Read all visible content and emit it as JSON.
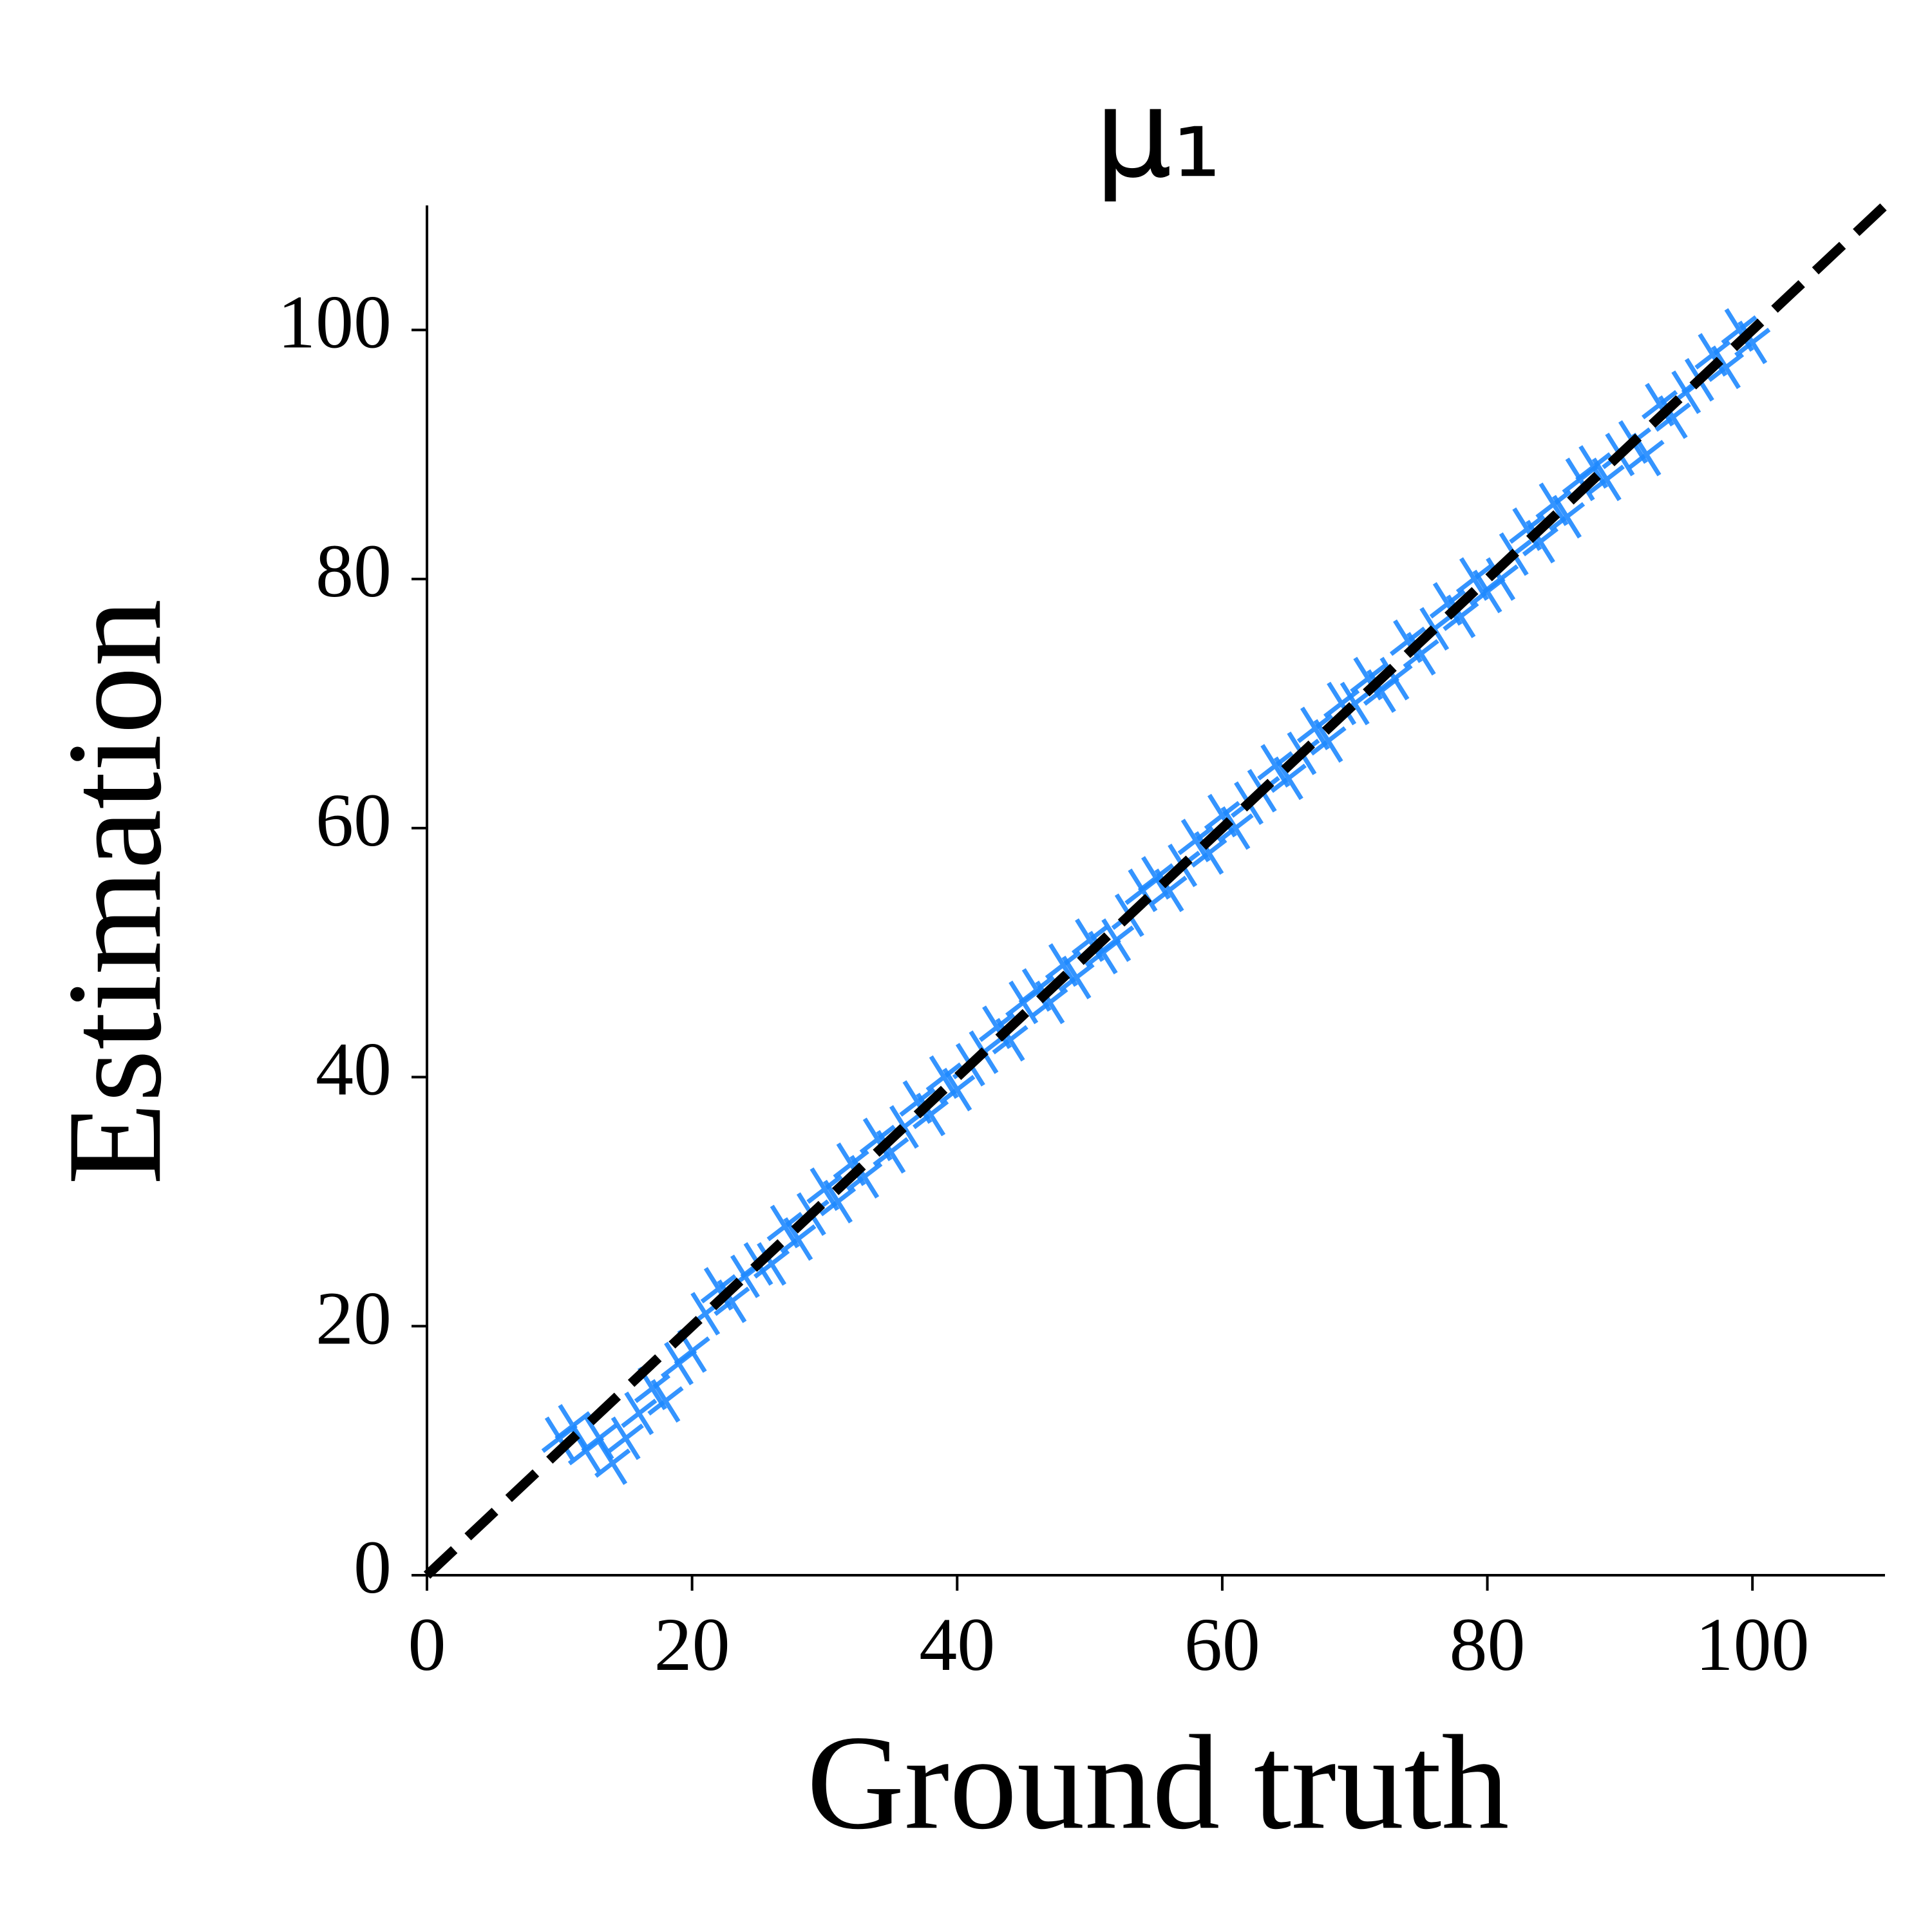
{
  "chart_data": {
    "type": "scatter",
    "title": "μ₁",
    "x_label": "Ground truth",
    "y_label": "Estimation",
    "xlim": [
      0,
      110
    ],
    "ylim": [
      0,
      110
    ],
    "xticks": [
      0,
      20,
      40,
      60,
      80,
      100
    ],
    "yticks": [
      0,
      20,
      40,
      60,
      80,
      100
    ],
    "marker": "x",
    "grid": false,
    "diagonal": {
      "x": [
        0,
        110
      ],
      "y": [
        0,
        110
      ],
      "color": "#000000",
      "dashed": true
    },
    "series": [
      {
        "color": "#1e88ff",
        "x": [
          10,
          11,
          12,
          13,
          14,
          15,
          16,
          17,
          18,
          19,
          20,
          21,
          22,
          23,
          24,
          25,
          26,
          27,
          28,
          29,
          30,
          31,
          32,
          33,
          34,
          35,
          36,
          37,
          38,
          39,
          40,
          41,
          42,
          43,
          44,
          45,
          46,
          47,
          48,
          49,
          50,
          51,
          52,
          53,
          54,
          55,
          56,
          57,
          58,
          59,
          60,
          61,
          62,
          63,
          64,
          65,
          66,
          67,
          68,
          69,
          70,
          71,
          72,
          73,
          74,
          75,
          76,
          77,
          78,
          79,
          80,
          81,
          82,
          83,
          84,
          85,
          86,
          87,
          88,
          89,
          90,
          91,
          92,
          93,
          94,
          95,
          96,
          97,
          98,
          99,
          100
        ],
        "values": [
          11,
          12,
          10,
          11,
          9,
          11,
          13,
          15,
          14,
          17,
          18,
          21,
          23,
          22,
          24,
          25,
          25,
          28,
          27,
          29,
          31,
          30,
          33,
          32,
          35,
          34,
          36,
          38,
          37,
          40,
          39,
          41,
          42,
          44,
          43,
          46,
          47,
          46,
          49,
          48,
          51,
          50,
          51,
          53,
          55,
          56,
          55,
          57,
          59,
          58,
          61,
          60,
          62,
          63,
          65,
          64,
          66,
          68,
          67,
          70,
          70,
          72,
          71,
          72,
          75,
          74,
          76,
          78,
          77,
          80,
          79,
          80,
          82,
          84,
          83,
          86,
          85,
          88,
          89,
          88,
          90,
          91,
          90,
          94,
          93,
          95,
          96,
          98,
          97,
          100,
          99
        ]
      }
    ]
  }
}
